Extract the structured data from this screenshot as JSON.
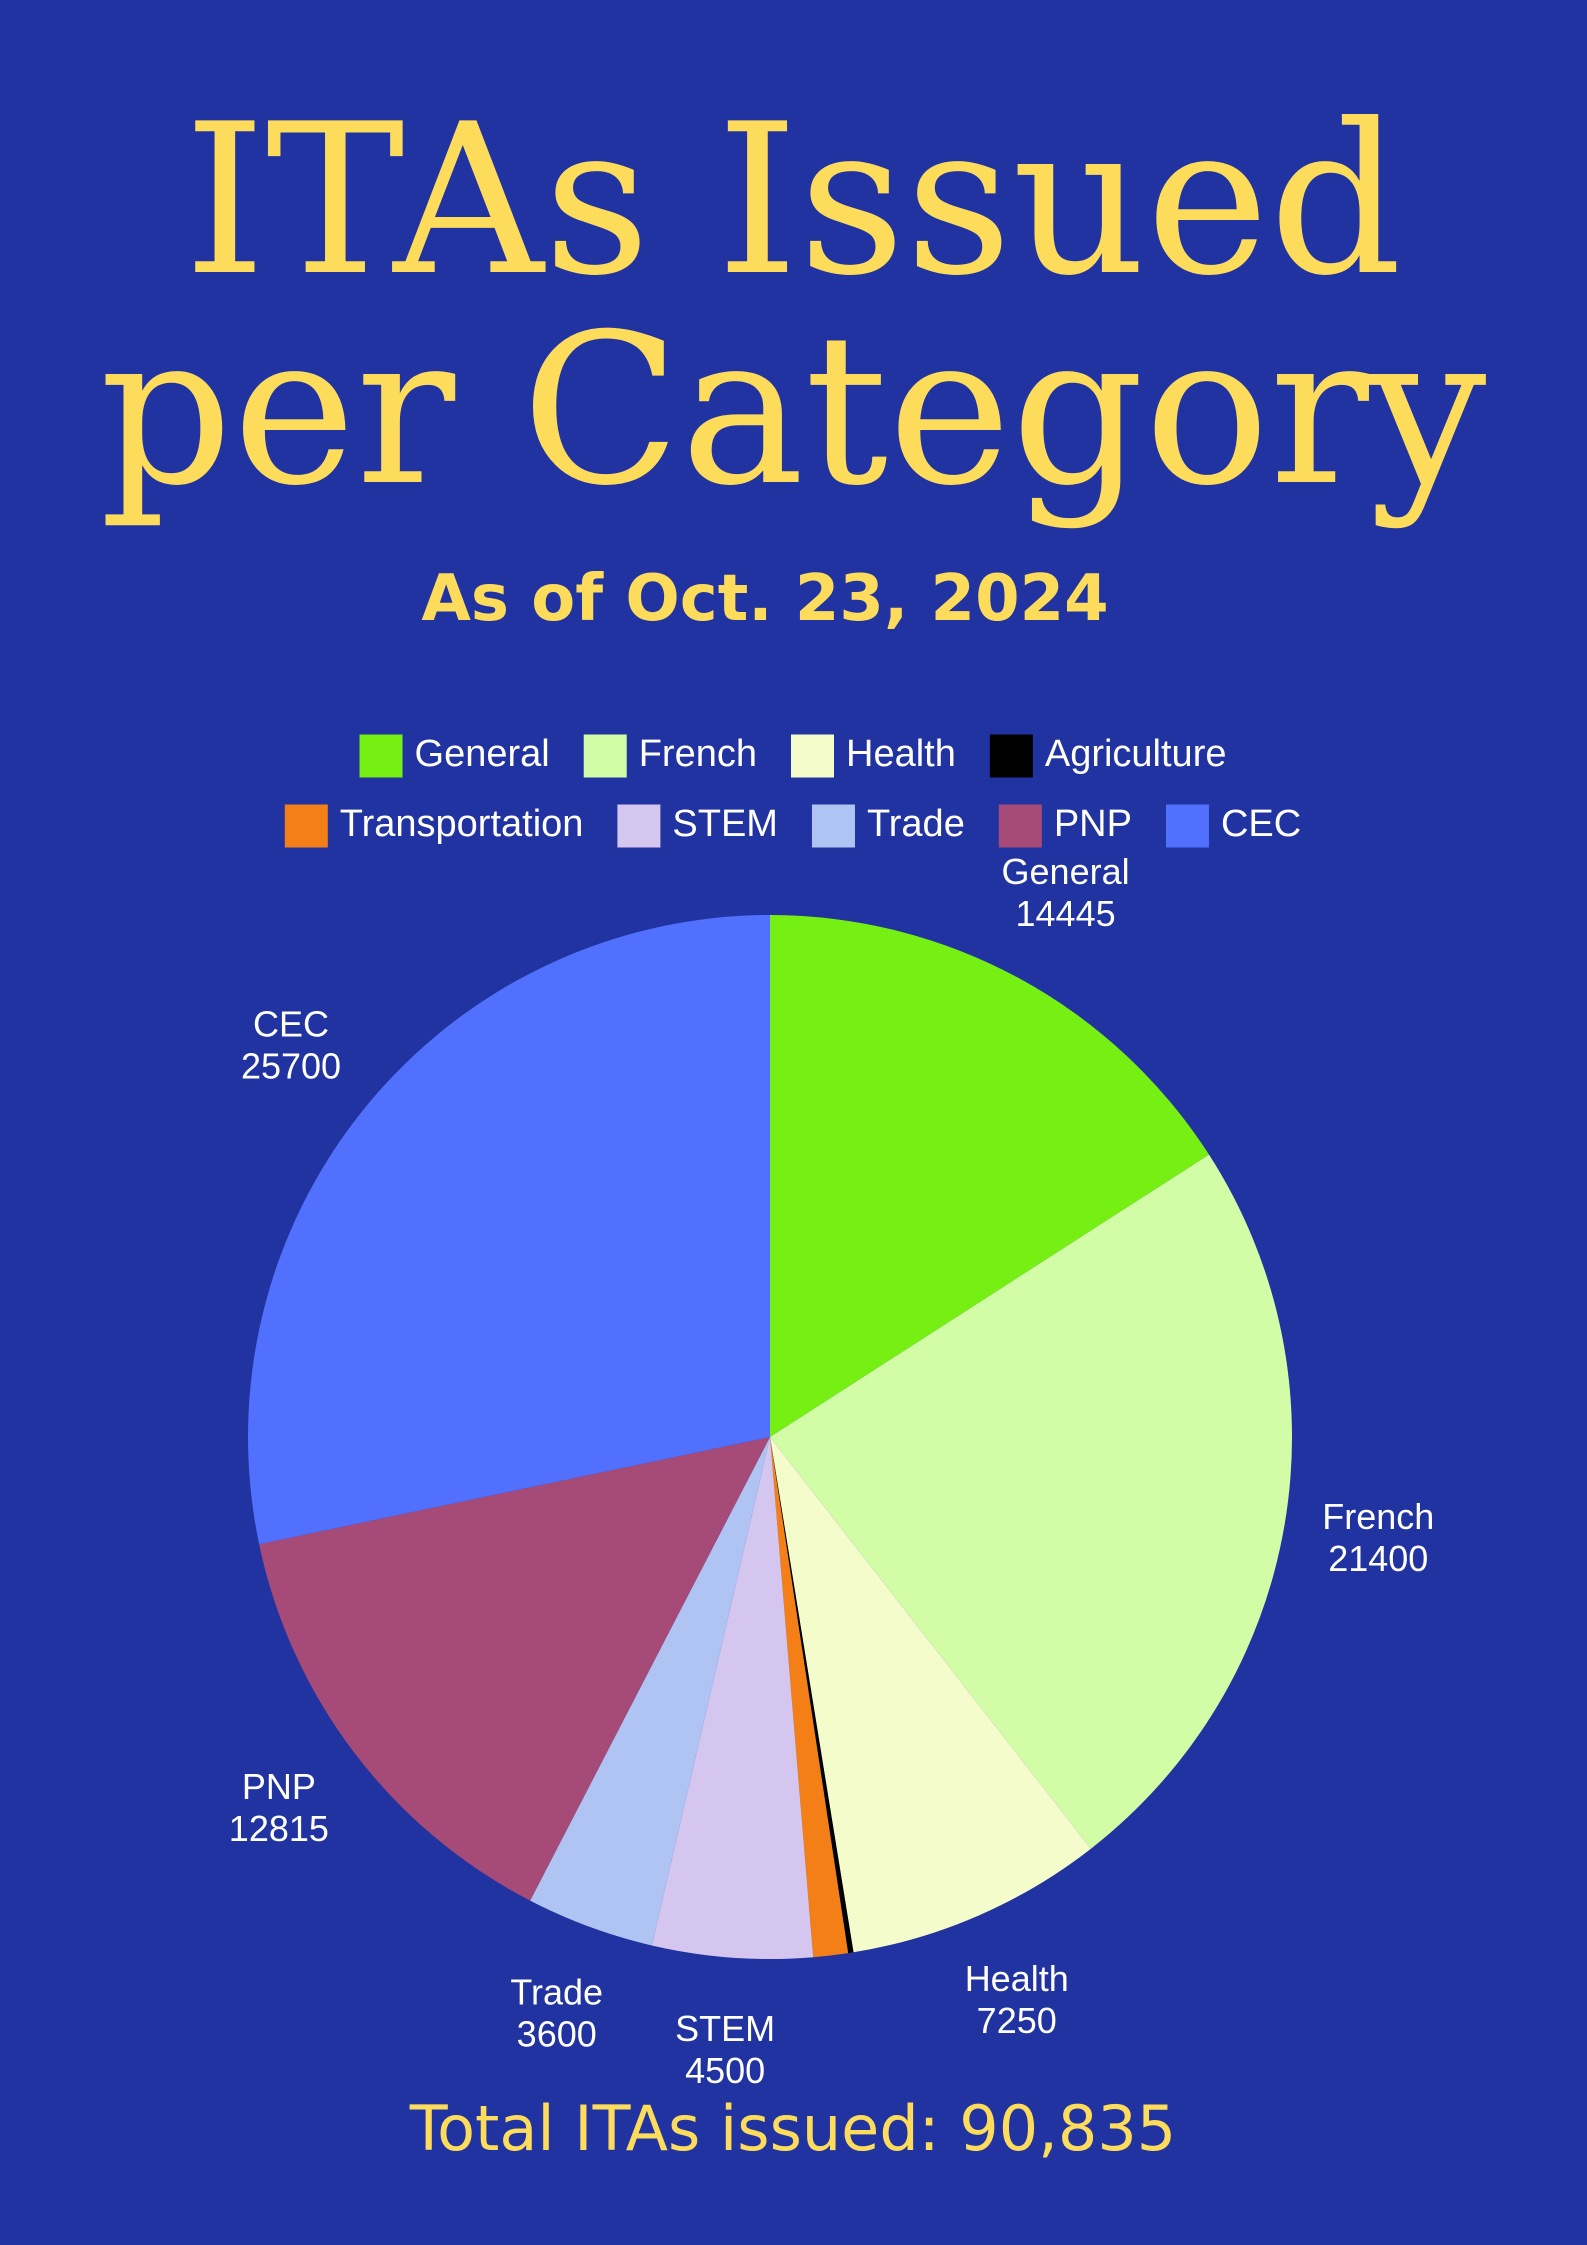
{
  "chart_data": {
    "type": "pie",
    "title_lines": [
      "ITAs Issued",
      "per Category"
    ],
    "subtitle": "As of Oct. 23, 2024",
    "categories": [
      "General",
      "French",
      "Health",
      "Agriculture",
      "Transportation",
      "STEM",
      "Trade",
      "PNP",
      "CEC"
    ],
    "values": [
      14445,
      21400,
      7250,
      150,
      975,
      4500,
      3600,
      12815,
      25700
    ],
    "colors": [
      "#76f013",
      "#d2fda6",
      "#f5fccb",
      "#000000",
      "#f57f17",
      "#d5c6f0",
      "#afc4f3",
      "#a64a78",
      "#5070fd"
    ],
    "labeled": [
      true,
      true,
      true,
      false,
      false,
      true,
      true,
      true,
      true
    ],
    "footer": "Total ITAs issued: 90,835"
  }
}
